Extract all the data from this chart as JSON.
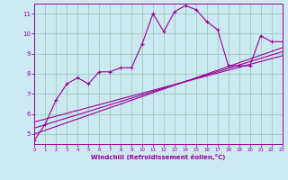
{
  "xlabel": "Windchill (Refroidissement éolien,°C)",
  "bg_color": "#cce8f0",
  "line_color": "#990099",
  "grid_color": "#99ccbb",
  "xlim": [
    0,
    23
  ],
  "ylim": [
    4.5,
    11.5
  ],
  "yticks": [
    5,
    6,
    7,
    8,
    9,
    10,
    11
  ],
  "xticks": [
    0,
    1,
    2,
    3,
    4,
    5,
    6,
    7,
    8,
    9,
    10,
    11,
    12,
    13,
    14,
    15,
    16,
    17,
    18,
    19,
    20,
    21,
    22,
    23
  ],
  "line1_x": [
    0,
    1,
    2,
    3,
    4,
    5,
    6,
    7,
    8,
    9,
    10,
    11,
    12,
    13,
    14,
    15,
    16,
    17,
    18,
    19,
    20,
    21,
    22,
    23
  ],
  "line1_y": [
    4.7,
    5.5,
    6.7,
    7.5,
    7.8,
    7.5,
    8.1,
    8.1,
    8.3,
    8.3,
    9.5,
    11.0,
    10.1,
    11.1,
    11.4,
    11.2,
    10.6,
    10.2,
    8.4,
    8.4,
    8.4,
    9.9,
    9.6,
    9.6
  ],
  "reg_lines": [
    {
      "x": [
        0,
        23
      ],
      "y": [
        5.0,
        9.3
      ]
    },
    {
      "x": [
        0,
        23
      ],
      "y": [
        5.3,
        9.1
      ]
    },
    {
      "x": [
        0,
        23
      ],
      "y": [
        5.6,
        8.9
      ]
    }
  ]
}
